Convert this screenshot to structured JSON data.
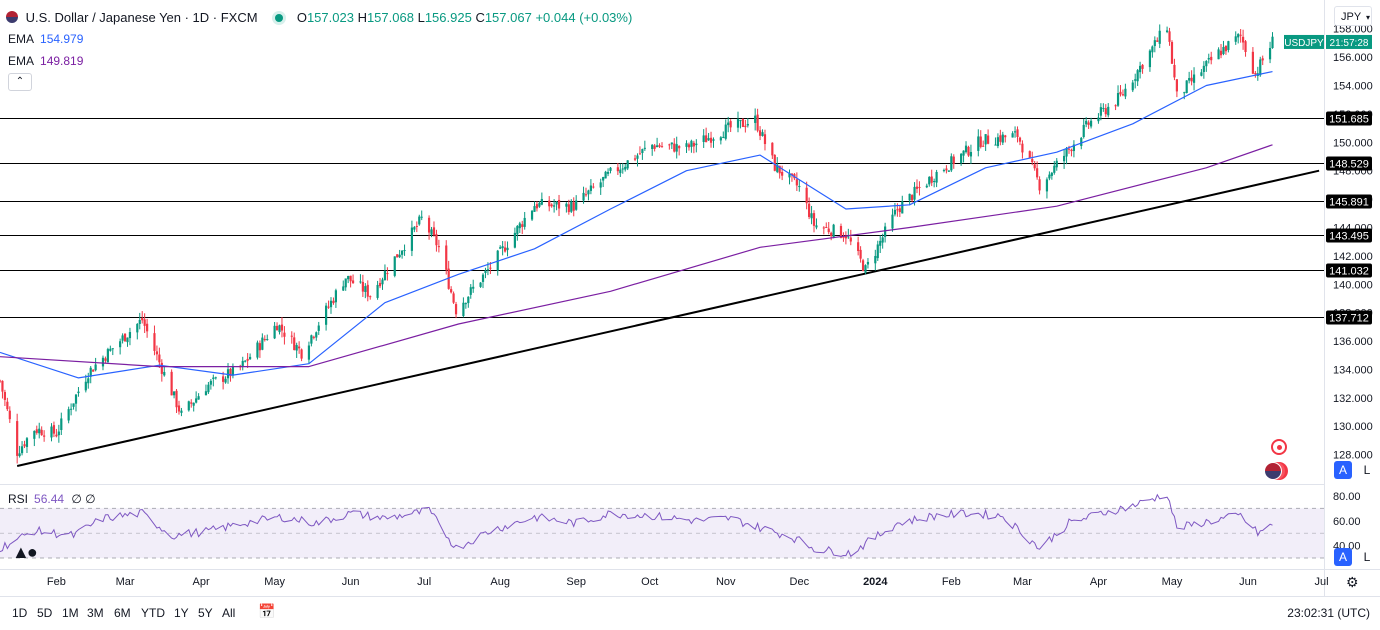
{
  "header": {
    "title": "U.S. Dollar / Japanese Yen · 1D · FXCM",
    "o_label": "O",
    "o_value": "157.023",
    "h_label": "H",
    "h_value": "157.068",
    "l_label": "L",
    "l_value": "156.925",
    "c_label": "C",
    "c_value": "157.067",
    "change": "+0.044 (+0.03%)"
  },
  "indicators": {
    "ema1_label": "EMA",
    "ema1_value": "154.979",
    "ema2_label": "EMA",
    "ema2_value": "149.819",
    "rsi_label": "RSI",
    "rsi_value": "56.44",
    "rsi_extra": "∅ ∅"
  },
  "currency_button": "JPY",
  "price_tag": {
    "symbol": "USDJPY",
    "countdown": "21:57:28"
  },
  "scale_buttons": {
    "auto": "A",
    "log": "L"
  },
  "colors": {
    "up": "#089981",
    "down": "#f23645",
    "ema_fast": "#2962ff",
    "ema_slow": "#7b1fa2",
    "rsi": "#7e57c2"
  },
  "timeframes": [
    "1D",
    "5D",
    "1M",
    "3M",
    "6M",
    "YTD",
    "1Y",
    "5Y",
    "All"
  ],
  "clock": "23:02:31 (UTC)",
  "chart_data": {
    "type": "candlestick",
    "symbol": "USDJPY",
    "price_ylim": [
      126.0,
      159.6
    ],
    "price_ticks": [
      "128.000",
      "130.000",
      "132.000",
      "134.000",
      "136.000",
      "138.000",
      "140.000",
      "142.000",
      "144.000",
      "146.000",
      "148.000",
      "150.000",
      "152.000",
      "154.000",
      "156.000",
      "158.000"
    ],
    "x_range": [
      "2023-01-09",
      "2024-07-02"
    ],
    "x_ticks": [
      {
        "label": "Feb",
        "date": "2023-02-01"
      },
      {
        "label": "Mar",
        "date": "2023-03-01"
      },
      {
        "label": "Apr",
        "date": "2023-04-01"
      },
      {
        "label": "May",
        "date": "2023-05-01"
      },
      {
        "label": "Jun",
        "date": "2023-06-01"
      },
      {
        "label": "Jul",
        "date": "2023-07-01"
      },
      {
        "label": "Aug",
        "date": "2023-08-01"
      },
      {
        "label": "Sep",
        "date": "2023-09-01"
      },
      {
        "label": "Oct",
        "date": "2023-10-01"
      },
      {
        "label": "Nov",
        "date": "2023-11-01"
      },
      {
        "label": "Dec",
        "date": "2023-12-01"
      },
      {
        "label": "2024",
        "date": "2024-01-01"
      },
      {
        "label": "Feb",
        "date": "2024-02-01"
      },
      {
        "label": "Mar",
        "date": "2024-03-01"
      },
      {
        "label": "Apr",
        "date": "2024-04-01"
      },
      {
        "label": "May",
        "date": "2024-05-01"
      },
      {
        "label": "Jun",
        "date": "2024-06-01"
      },
      {
        "label": "Jul",
        "date": "2024-07-01"
      }
    ],
    "close_path": [
      [
        "2023-01-09",
        133.2
      ],
      [
        "2023-01-16",
        128.2
      ],
      [
        "2023-01-23",
        129.8
      ],
      [
        "2023-02-01",
        129.5
      ],
      [
        "2023-02-14",
        133.8
      ],
      [
        "2023-02-28",
        136.2
      ],
      [
        "2023-03-08",
        137.5
      ],
      [
        "2023-03-15",
        134.5
      ],
      [
        "2023-03-24",
        130.8
      ],
      [
        "2023-04-03",
        132.8
      ],
      [
        "2023-04-17",
        134.1
      ],
      [
        "2023-05-02",
        137.2
      ],
      [
        "2023-05-12",
        135.2
      ],
      [
        "2023-05-30",
        140.5
      ],
      [
        "2023-06-09",
        139.3
      ],
      [
        "2023-06-30",
        144.6
      ],
      [
        "2023-07-07",
        142.6
      ],
      [
        "2023-07-14",
        138.2
      ],
      [
        "2023-07-28",
        141.2
      ],
      [
        "2023-08-15",
        145.6
      ],
      [
        "2023-08-31",
        145.5
      ],
      [
        "2023-09-15",
        147.8
      ],
      [
        "2023-10-02",
        149.8
      ],
      [
        "2023-10-16",
        149.6
      ],
      [
        "2023-11-01",
        150.9
      ],
      [
        "2023-11-13",
        151.6
      ],
      [
        "2023-11-21",
        148.3
      ],
      [
        "2023-12-01",
        146.8
      ],
      [
        "2023-12-07",
        144.2
      ],
      [
        "2023-12-20",
        143.5
      ],
      [
        "2023-12-28",
        141.0
      ],
      [
        "2024-01-10",
        145.3
      ],
      [
        "2024-01-25",
        147.7
      ],
      [
        "2024-02-13",
        150.1
      ],
      [
        "2024-02-28",
        150.5
      ],
      [
        "2024-03-08",
        147.0
      ],
      [
        "2024-03-14",
        148.2
      ],
      [
        "2024-03-28",
        151.3
      ],
      [
        "2024-04-10",
        153.2
      ],
      [
        "2024-04-29",
        158.2
      ],
      [
        "2024-05-03",
        153.2
      ],
      [
        "2024-05-20",
        156.3
      ],
      [
        "2024-05-29",
        157.5
      ],
      [
        "2024-06-04",
        154.8
      ],
      [
        "2024-06-11",
        157.1
      ]
    ],
    "ema_fast_path": [
      [
        "2023-01-09",
        135.2
      ],
      [
        "2023-02-10",
        133.4
      ],
      [
        "2023-03-15",
        134.3
      ],
      [
        "2023-04-14",
        133.6
      ],
      [
        "2023-05-15",
        134.4
      ],
      [
        "2023-06-15",
        138.7
      ],
      [
        "2023-07-15",
        140.7
      ],
      [
        "2023-08-15",
        142.5
      ],
      [
        "2023-09-15",
        145.3
      ],
      [
        "2023-10-16",
        148.0
      ],
      [
        "2023-11-15",
        149.1
      ],
      [
        "2023-12-20",
        145.3
      ],
      [
        "2024-01-15",
        145.6
      ],
      [
        "2024-02-15",
        148.2
      ],
      [
        "2024-03-15",
        149.3
      ],
      [
        "2024-04-15",
        151.3
      ],
      [
        "2024-05-15",
        154.0
      ],
      [
        "2024-06-11",
        154.98
      ]
    ],
    "ema_slow_path": [
      [
        "2023-01-09",
        134.9
      ],
      [
        "2023-03-15",
        134.2
      ],
      [
        "2023-05-15",
        134.2
      ],
      [
        "2023-07-15",
        137.2
      ],
      [
        "2023-09-15",
        139.5
      ],
      [
        "2023-11-15",
        142.6
      ],
      [
        "2024-01-15",
        144.0
      ],
      [
        "2024-03-15",
        145.5
      ],
      [
        "2024-05-15",
        148.2
      ],
      [
        "2024-06-11",
        149.82
      ]
    ],
    "trendline": {
      "from": [
        "2023-01-16",
        127.2
      ],
      "to": [
        "2024-06-30",
        148.0
      ]
    },
    "horizontal_levels": [
      151.685,
      148.529,
      145.891,
      143.495,
      141.032,
      137.712
    ],
    "rsi": {
      "ylim": [
        0,
        100
      ],
      "display_range": [
        22,
        88
      ],
      "ticks": [
        "40.00",
        "60.00",
        "80.00"
      ],
      "bands": [
        30,
        50,
        70
      ],
      "last": 56.44,
      "path": [
        [
          "2023-01-09",
          38
        ],
        [
          "2023-01-23",
          52
        ],
        [
          "2023-02-08",
          48
        ],
        [
          "2023-02-20",
          62
        ],
        [
          "2023-03-08",
          66
        ],
        [
          "2023-03-20",
          48
        ],
        [
          "2023-04-05",
          52
        ],
        [
          "2023-04-18",
          58
        ],
        [
          "2023-05-04",
          63
        ],
        [
          "2023-05-18",
          58
        ],
        [
          "2023-06-01",
          66
        ],
        [
          "2023-06-15",
          62
        ],
        [
          "2023-07-03",
          68
        ],
        [
          "2023-07-14",
          38
        ],
        [
          "2023-07-28",
          52
        ],
        [
          "2023-08-15",
          63
        ],
        [
          "2023-09-01",
          58
        ],
        [
          "2023-09-15",
          66
        ],
        [
          "2023-10-02",
          64
        ],
        [
          "2023-10-20",
          60
        ],
        [
          "2023-11-03",
          62
        ],
        [
          "2023-11-14",
          55
        ],
        [
          "2023-11-28",
          47
        ],
        [
          "2023-12-08",
          37
        ],
        [
          "2023-12-22",
          34
        ],
        [
          "2024-01-10",
          58
        ],
        [
          "2024-01-25",
          64
        ],
        [
          "2024-02-08",
          66
        ],
        [
          "2024-02-22",
          64
        ],
        [
          "2024-03-08",
          38
        ],
        [
          "2024-03-20",
          58
        ],
        [
          "2024-04-02",
          66
        ],
        [
          "2024-04-15",
          72
        ],
        [
          "2024-04-29",
          82
        ],
        [
          "2024-05-03",
          54
        ],
        [
          "2024-05-17",
          60
        ],
        [
          "2024-05-29",
          64
        ],
        [
          "2024-06-05",
          50
        ],
        [
          "2024-06-11",
          56.44
        ]
      ]
    }
  }
}
